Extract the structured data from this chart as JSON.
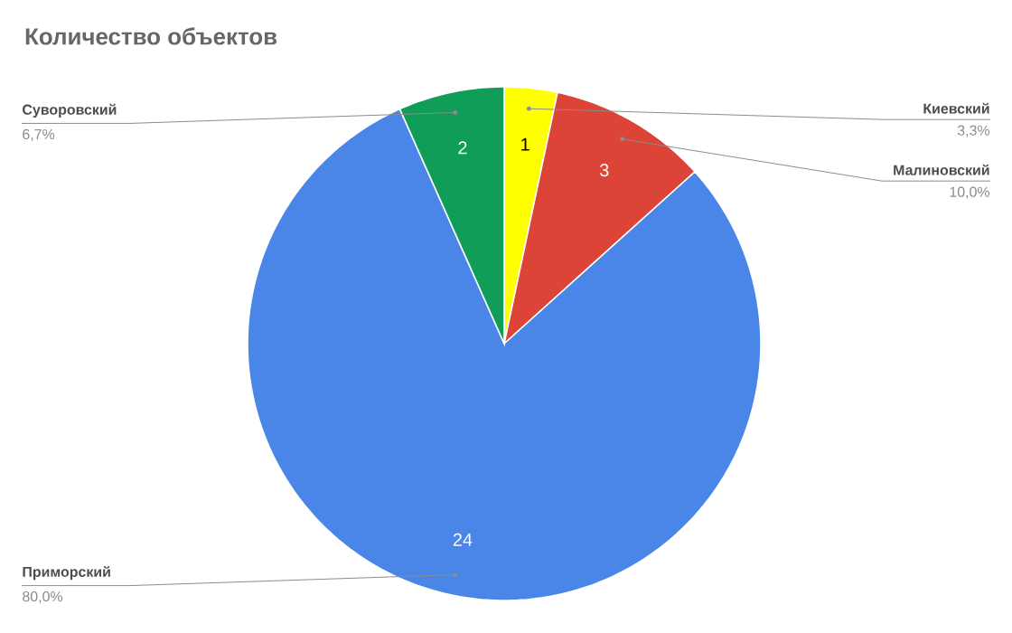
{
  "chart_data": {
    "type": "pie",
    "title": "Количество объектов",
    "categories": [
      "Киевский",
      "Малиновский",
      "Приморский",
      "Суворовский"
    ],
    "values": [
      1,
      3,
      24,
      2
    ],
    "colors": [
      "#ffff00",
      "#db4437",
      "#4a86e8",
      "#0f9d58"
    ],
    "data_labels": true,
    "annotations": [
      "3,3%",
      "10,0%",
      "80,0%",
      "6,7%"
    ]
  }
}
